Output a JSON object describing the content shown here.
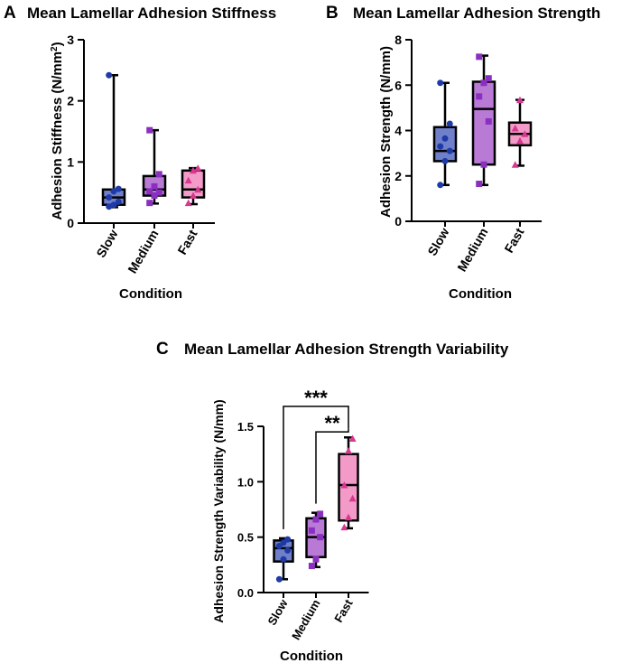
{
  "colors": {
    "slow_fill": "#6f7fc9",
    "slow_dot": "#1e3aa8",
    "medium_fill": "#b97ad6",
    "medium_dot": "#8a2fc0",
    "fast_fill": "#f39ac9",
    "fast_dot": "#d6398f",
    "ink": "#000000"
  },
  "chart_data": [
    {
      "panel": "A",
      "type": "box",
      "title": "Mean Lamellar Adhesion Stiffness",
      "xlabel": "Condition",
      "ylabel_main": "Adhesion Stiffness (N/mm",
      "ylabel_sup": "2",
      "ylabel_end": ")",
      "ylim": [
        0,
        3
      ],
      "yticks": [
        0,
        1,
        2,
        3
      ],
      "ytick_labels": [
        "0",
        "1",
        "2",
        "3"
      ],
      "categories": [
        "Slow",
        "Medium",
        "Fast"
      ],
      "boxes": [
        {
          "min": 0.26,
          "q1": 0.3,
          "median": 0.42,
          "q3": 0.55,
          "max": 2.42,
          "points": [
            0.27,
            0.3,
            0.35,
            0.42,
            0.52,
            0.56,
            2.42
          ],
          "marker": "circle"
        },
        {
          "min": 0.32,
          "q1": 0.45,
          "median": 0.55,
          "q3": 0.77,
          "max": 1.52,
          "points": [
            0.33,
            0.45,
            0.5,
            0.52,
            0.6,
            0.8,
            1.52
          ],
          "marker": "square"
        },
        {
          "min": 0.31,
          "q1": 0.42,
          "median": 0.55,
          "q3": 0.86,
          "max": 0.9,
          "points": [
            0.33,
            0.45,
            0.55,
            0.7,
            0.86,
            0.9
          ],
          "marker": "triangle"
        }
      ]
    },
    {
      "panel": "B",
      "type": "box",
      "title": "Mean Lamellar Adhesion Strength",
      "xlabel": "Condition",
      "ylabel": "Adhesion Strength (N/mm)",
      "ylim": [
        0,
        8
      ],
      "yticks": [
        0,
        2,
        4,
        6,
        8
      ],
      "ytick_labels": [
        "0",
        "2",
        "4",
        "6",
        "8"
      ],
      "categories": [
        "Slow",
        "Medium",
        "Fast"
      ],
      "boxes": [
        {
          "min": 1.6,
          "q1": 2.65,
          "median": 3.1,
          "q3": 4.15,
          "max": 6.1,
          "points": [
            1.6,
            2.65,
            3.1,
            3.3,
            3.65,
            4.3,
            6.1
          ],
          "marker": "circle"
        },
        {
          "min": 1.6,
          "q1": 2.5,
          "median": 4.95,
          "q3": 6.15,
          "max": 7.3,
          "points": [
            1.65,
            2.5,
            4.4,
            5.5,
            6.1,
            6.3,
            7.25
          ],
          "marker": "square"
        },
        {
          "min": 2.45,
          "q1": 3.35,
          "median": 3.85,
          "q3": 4.35,
          "max": 5.35,
          "points": [
            2.5,
            3.55,
            3.85,
            4.1,
            5.35
          ],
          "marker": "triangle"
        }
      ]
    },
    {
      "panel": "C",
      "type": "box",
      "title": "Mean Lamellar Adhesion Strength Variability",
      "xlabel": "Condition",
      "ylabel": "Adhesion Strength Variability (N/mm)",
      "ylim": [
        0,
        1.5
      ],
      "yticks": [
        0,
        0.5,
        1.0,
        1.5
      ],
      "ytick_labels": [
        "0.0",
        "0.5",
        "1.0",
        "1.5"
      ],
      "categories": [
        "Slow",
        "Medium",
        "Fast"
      ],
      "boxes": [
        {
          "min": 0.12,
          "q1": 0.28,
          "median": 0.4,
          "q3": 0.47,
          "max": 0.49,
          "points": [
            0.12,
            0.3,
            0.38,
            0.42,
            0.45,
            0.48
          ],
          "marker": "circle"
        },
        {
          "min": 0.23,
          "q1": 0.32,
          "median": 0.5,
          "q3": 0.67,
          "max": 0.72,
          "points": [
            0.24,
            0.3,
            0.5,
            0.56,
            0.66,
            0.71
          ],
          "marker": "square"
        },
        {
          "min": 0.58,
          "q1": 0.65,
          "median": 0.97,
          "q3": 1.25,
          "max": 1.4,
          "points": [
            0.59,
            0.68,
            0.85,
            0.97,
            1.28,
            1.39
          ],
          "marker": "triangle"
        }
      ],
      "significance": [
        {
          "from": "Slow",
          "to": "Fast",
          "label": "***",
          "y": 1.68
        },
        {
          "from": "Medium",
          "to": "Fast",
          "label": "**",
          "y": 1.45
        }
      ]
    }
  ]
}
